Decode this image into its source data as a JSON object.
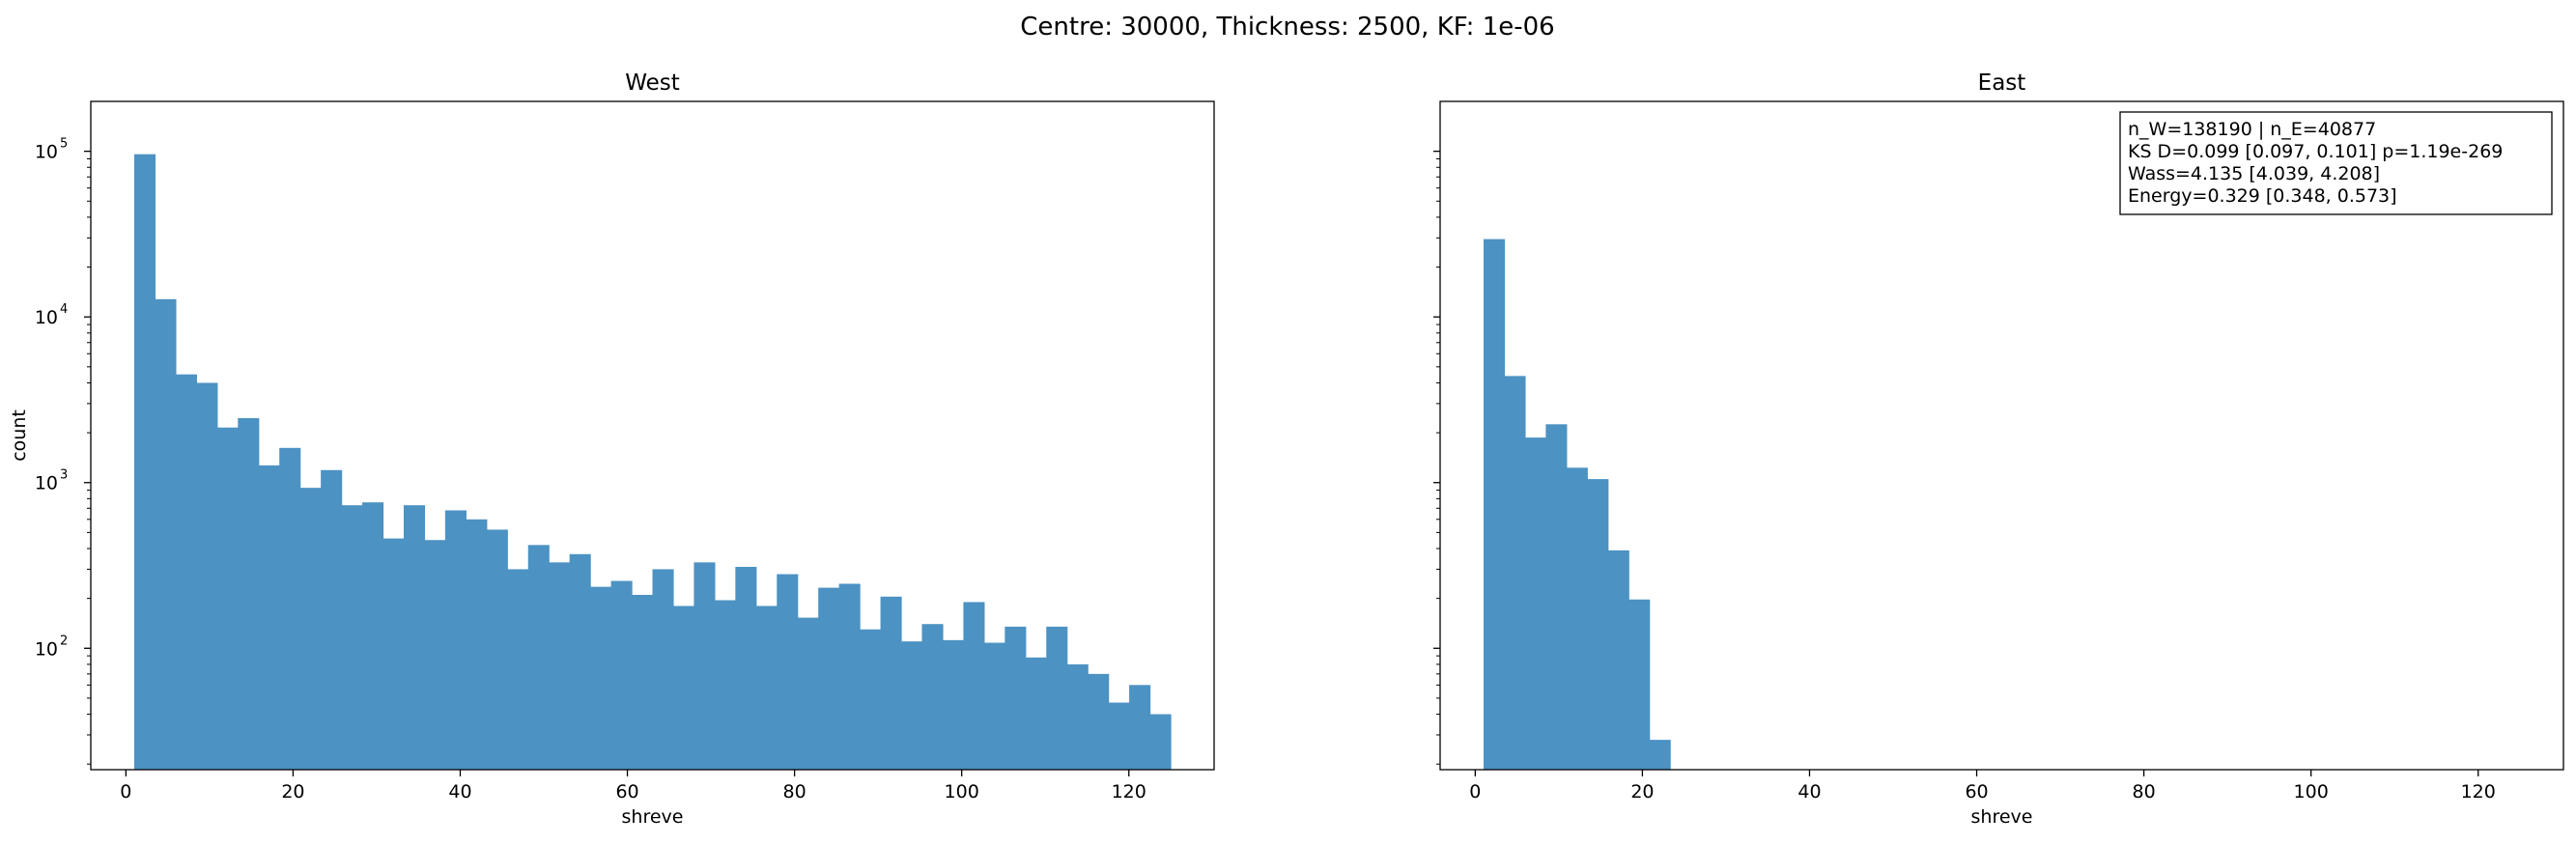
{
  "figure_title": "Centre: 30000, Thickness: 2500, KF: 1e-06",
  "chart_data": [
    {
      "type": "bar",
      "title": "West",
      "xlabel": "shreve",
      "ylabel": "count",
      "y_scale": "log",
      "xlim": [
        -4.2,
        130.2
      ],
      "ylim": [
        18.5,
        200000
      ],
      "bar_color": "#4c92c3",
      "x_ticks": [
        0,
        20,
        40,
        60,
        80,
        100,
        120
      ],
      "x_tick_labels": [
        "0",
        "20",
        "40",
        "60",
        "80",
        "100",
        "120"
      ],
      "y_ticks": [
        {
          "value": 100,
          "base": "10",
          "exp": "2"
        },
        {
          "value": 1000,
          "base": "10",
          "exp": "3"
        },
        {
          "value": 10000,
          "base": "10",
          "exp": "4"
        },
        {
          "value": 100000,
          "base": "10",
          "exp": "5"
        }
      ],
      "bin_edges": [
        1,
        3.48,
        5.96,
        8.44,
        10.92,
        13.4,
        15.88,
        18.36,
        20.84,
        23.32,
        25.8,
        28.28,
        30.76,
        33.24,
        35.72,
        38.2,
        40.68,
        43.16,
        45.64,
        48.12,
        50.6,
        53.08,
        55.56,
        58.04,
        60.52,
        63,
        65.48,
        67.96,
        70.44,
        72.92,
        75.4,
        77.88,
        80.36,
        82.84,
        85.32,
        87.8,
        90.28,
        92.76,
        95.24,
        97.72,
        100.2,
        102.68,
        105.16,
        107.64,
        110.12,
        112.6,
        115.08,
        117.56,
        120.04,
        122.52,
        125
      ],
      "values": [
        96000,
        12800,
        4500,
        4000,
        2150,
        2450,
        1270,
        1620,
        930,
        1190,
        730,
        760,
        460,
        730,
        450,
        680,
        600,
        520,
        300,
        420,
        330,
        370,
        235,
        255,
        210,
        300,
        180,
        330,
        195,
        310,
        180,
        280,
        153,
        232,
        245,
        130,
        205,
        110,
        140,
        112,
        190,
        108,
        135,
        88,
        135,
        80,
        70,
        47,
        60,
        40
      ]
    },
    {
      "type": "bar",
      "title": "East",
      "xlabel": "shreve",
      "ylabel": "",
      "y_scale": "log",
      "xlim": [
        -4.2,
        130.2
      ],
      "ylim": [
        18.5,
        200000
      ],
      "bar_color": "#4c92c3",
      "x_ticks": [
        0,
        20,
        40,
        60,
        80,
        100,
        120
      ],
      "x_tick_labels": [
        "0",
        "20",
        "40",
        "60",
        "80",
        "100",
        "120"
      ],
      "y_ticks": [
        {
          "value": 100,
          "base": "",
          "exp": ""
        },
        {
          "value": 1000,
          "base": "",
          "exp": ""
        },
        {
          "value": 10000,
          "base": "",
          "exp": ""
        },
        {
          "value": 100000,
          "base": "",
          "exp": ""
        }
      ],
      "bin_edges": [
        1,
        3.48,
        5.96,
        8.44,
        10.92,
        13.4,
        15.88,
        18.36,
        20.84,
        23.32
      ],
      "values": [
        29500,
        4400,
        1870,
        2250,
        1230,
        1050,
        390,
        197,
        28
      ],
      "annotation": [
        "n_W=138190 | n_E=40877",
        "KS D=0.099 [0.097, 0.101]  p=1.19e-269",
        "Wass=4.135 [4.039, 4.208]",
        "Energy=0.329 [0.348, 0.573]"
      ]
    }
  ]
}
